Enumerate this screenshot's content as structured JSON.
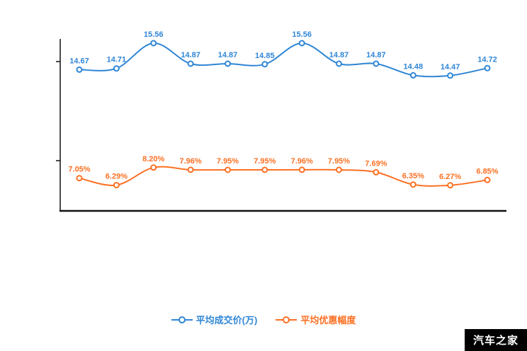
{
  "chart_data": {
    "type": "line",
    "categories": [
      "",
      "",
      "",
      "",
      "",
      "",
      "",
      "",
      "",
      "",
      "",
      ""
    ],
    "series": [
      {
        "name": "平均成交价(万)",
        "color": "#2f86d6",
        "values": [
          14.67,
          14.71,
          15.56,
          14.87,
          14.87,
          14.85,
          15.56,
          14.87,
          14.87,
          14.48,
          14.47,
          14.72
        ],
        "labels": [
          "14.67",
          "14.71",
          "15.56",
          "14.87",
          "14.87",
          "14.85",
          "15.56",
          "14.87",
          "14.87",
          "14.48",
          "14.47",
          "14.72"
        ]
      },
      {
        "name": "平均优惠幅度",
        "color": "#fc7023",
        "values": [
          7.05,
          6.29,
          8.2,
          7.96,
          7.95,
          7.95,
          7.96,
          7.95,
          7.69,
          6.35,
          6.27,
          6.85
        ],
        "labels": [
          "7.05%",
          "6.29%",
          "8.20%",
          "7.96%",
          "7.95%",
          "7.95%",
          "7.96%",
          "7.95%",
          "7.69%",
          "6.35%",
          "6.27%",
          "6.85%"
        ]
      }
    ],
    "title": "",
    "xlabel": "",
    "ylabel": "",
    "grid": false,
    "legend_position": "bottom",
    "axis_color": "#111111"
  },
  "legend": {
    "items": [
      {
        "label": "平均成交价(万)",
        "color": "#2f86d6"
      },
      {
        "label": "平均优惠幅度",
        "color": "#fc7023"
      }
    ]
  },
  "watermark": {
    "text": "汽车之家",
    "bg": "#000000",
    "fg": "#ffffff"
  }
}
